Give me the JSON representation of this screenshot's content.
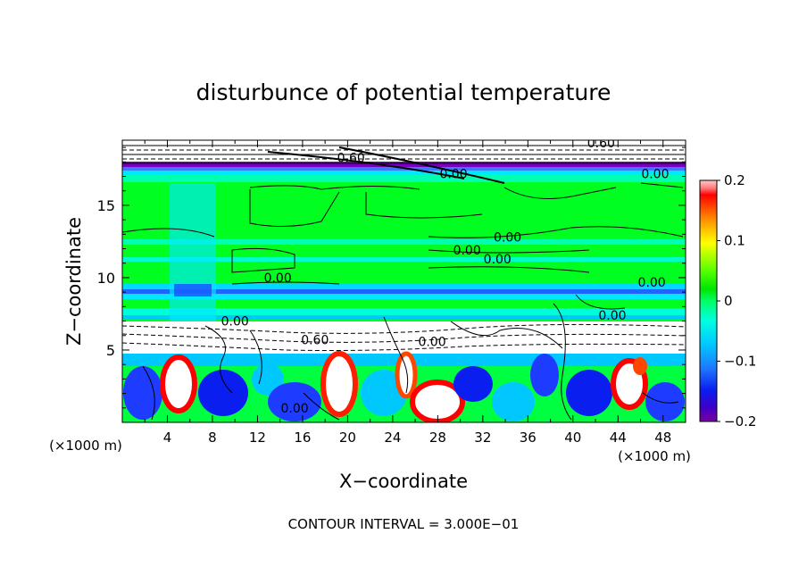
{
  "chart_data": {
    "type": "heatmap",
    "title": "disturbunce of potential temperature",
    "xlabel": "X−coordinate",
    "ylabel": "Z−coordinate",
    "x_unit": "(×1000 m)",
    "z_unit": "(×1000 m)",
    "xlim": [
      0,
      50
    ],
    "ylim": [
      0,
      19.5
    ],
    "x_ticks": [
      4,
      8,
      12,
      16,
      20,
      24,
      28,
      32,
      36,
      40,
      44,
      48
    ],
    "y_ticks": [
      5,
      10,
      15
    ],
    "colorbar": {
      "range": [
        -0.2,
        0.2
      ],
      "ticks": [
        0.2,
        0.1,
        0,
        -0.1,
        -0.2
      ],
      "tick_labels": [
        "0.2",
        "0.1",
        "0",
        "−0.1",
        "−0.2"
      ],
      "colors": [
        "#7a00a0",
        "#3c00c8",
        "#0a1ef0",
        "#1e78ff",
        "#00c8ff",
        "#00ffe0",
        "#00ff64",
        "#00e600",
        "#50ff00",
        "#b4ff00",
        "#ffff00",
        "#ffc800",
        "#ff8c00",
        "#ff4600",
        "#ff0000",
        "#ff8080",
        "#ffc8c8"
      ]
    },
    "contour_labels": [
      {
        "text": "0.60",
        "x": 20.3,
        "z": 18.3
      },
      {
        "text": "0.60",
        "x": 42.5,
        "z": 19.3
      },
      {
        "text": "0.00",
        "x": 29.4,
        "z": 17.2
      },
      {
        "text": "0.00",
        "x": 47.3,
        "z": 17.2
      },
      {
        "text": "0.00",
        "x": 34.2,
        "z": 12.8
      },
      {
        "text": "0.00",
        "x": 30.6,
        "z": 11.9
      },
      {
        "text": "0.00",
        "x": 33.3,
        "z": 11.3
      },
      {
        "text": "0.00",
        "x": 13.8,
        "z": 10.0
      },
      {
        "text": "0.00",
        "x": 47.0,
        "z": 9.7
      },
      {
        "text": "0.00",
        "x": 43.5,
        "z": 7.4
      },
      {
        "text": "0.00",
        "x": 10.0,
        "z": 7.0
      },
      {
        "text": "0.60",
        "x": 17.1,
        "z": 5.7
      },
      {
        "text": "0.00",
        "x": 27.5,
        "z": 5.6
      },
      {
        "text": "0.00",
        "x": 15.3,
        "z": 1.0
      }
    ],
    "footer": "CONTOUR INTERVAL = 3.000E−01"
  }
}
